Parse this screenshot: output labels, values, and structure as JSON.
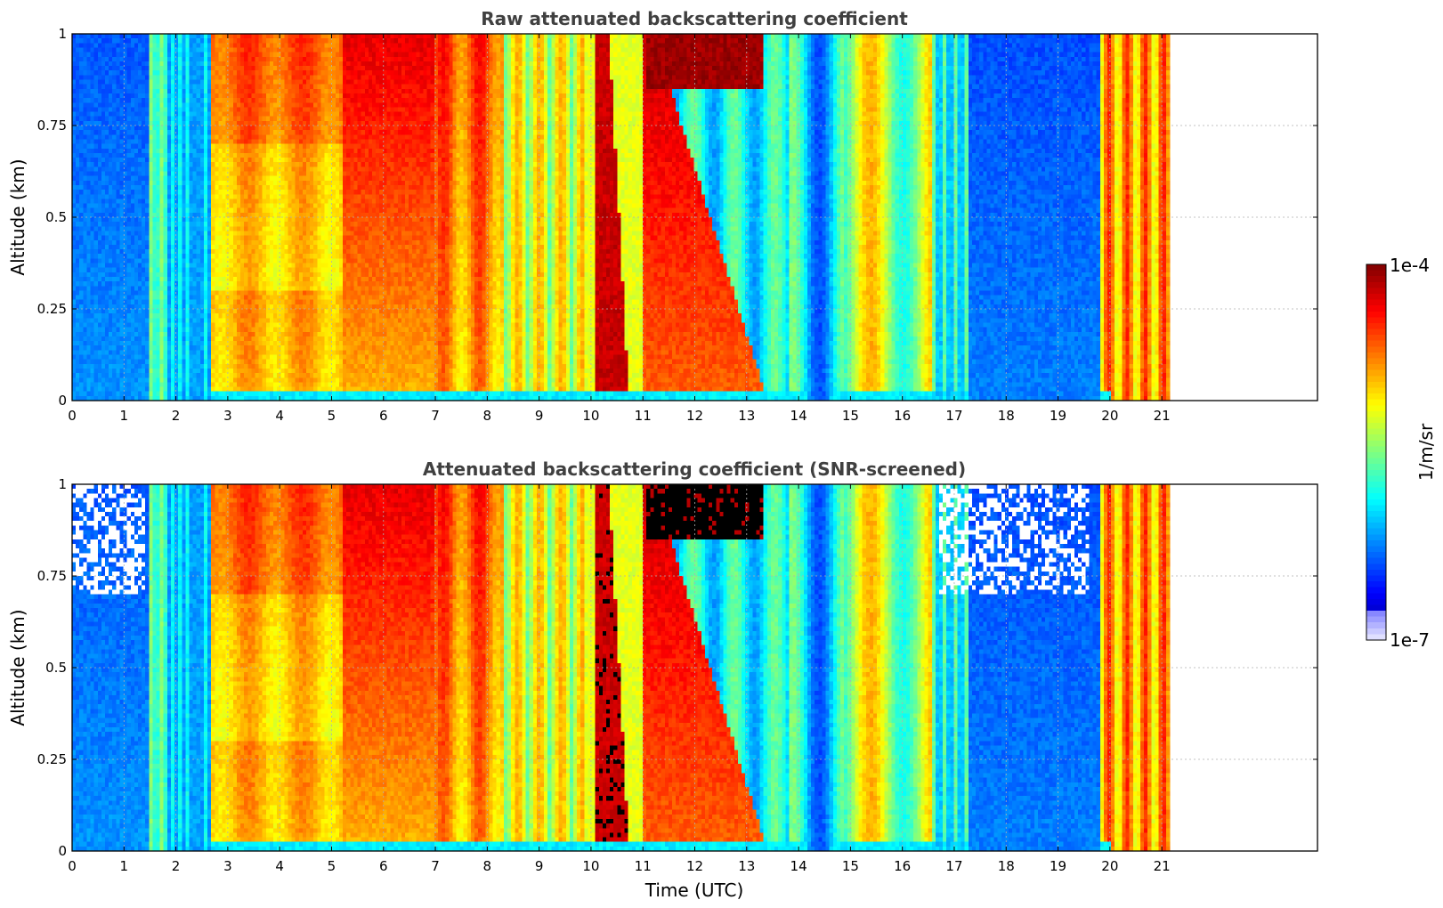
{
  "chart_data": [
    {
      "type": "heatmap",
      "title": "Raw attenuated backscattering coefficient",
      "xlabel": "",
      "ylabel": "Altitude (km)",
      "xlim": [
        0,
        24
      ],
      "ylim": [
        0,
        1
      ],
      "xticks": [
        0,
        1,
        2,
        3,
        4,
        5,
        6,
        7,
        8,
        9,
        10,
        11,
        12,
        13,
        14,
        15,
        16,
        17,
        18,
        19,
        20,
        21
      ],
      "yticks": [
        0,
        0.25,
        0.5,
        0.75,
        1
      ],
      "ytick_labels": [
        "0",
        "0.25",
        "0.5",
        "0.75",
        "1"
      ],
      "data_extent_hours": [
        0,
        21.15
      ],
      "grid": true,
      "colormap": "jet"
    },
    {
      "type": "heatmap",
      "title": "Attenuated backscattering coefficient (SNR-screened)",
      "xlabel": "Time (UTC)",
      "ylabel": "Altitude (km)",
      "xlim": [
        0,
        24
      ],
      "ylim": [
        0,
        1
      ],
      "xticks": [
        0,
        1,
        2,
        3,
        4,
        5,
        6,
        7,
        8,
        9,
        10,
        11,
        12,
        13,
        14,
        15,
        16,
        17,
        18,
        19,
        20,
        21
      ],
      "yticks": [
        0,
        0.25,
        0.5,
        0.75,
        1
      ],
      "ytick_labels": [
        "0",
        "0.25",
        "0.5",
        "0.75",
        "1"
      ],
      "data_extent_hours": [
        0,
        21.15
      ],
      "grid": true,
      "colormap": "jet",
      "screened": true
    }
  ],
  "colorbar": {
    "max_label": "1e-4",
    "min_label": "1e-7",
    "unit_label": "1/m/sr",
    "scale": "log"
  },
  "colors": {
    "axis": "#000000",
    "title": "#404040",
    "grid": "#b0b0b0"
  }
}
